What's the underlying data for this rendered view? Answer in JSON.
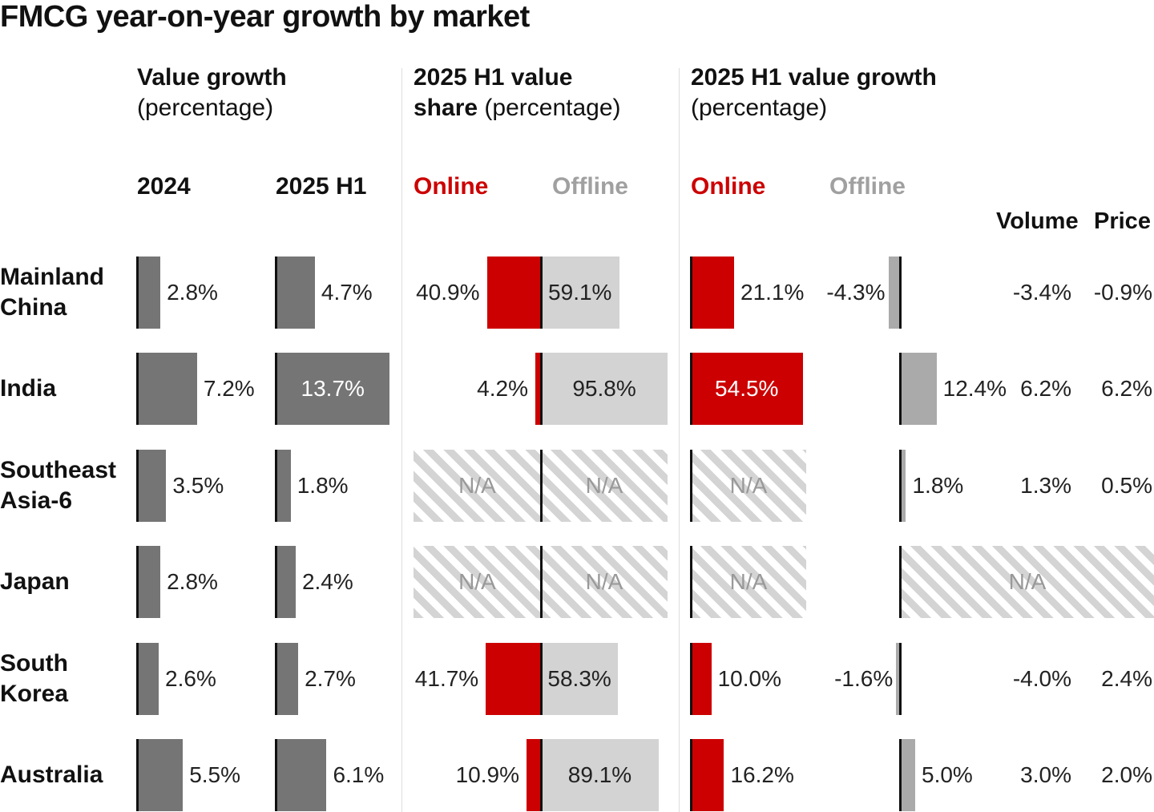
{
  "title": "FMCG year-on-year growth by market",
  "headers": {
    "value_growth_bold": "Value growth",
    "value_growth_rest": "(percentage)",
    "share_bold_1": "2025 H1 value",
    "share_bold_2": "share",
    "share_rest": "(percentage)",
    "h1growth_bold": "2025 H1 value growth",
    "h1growth_rest": "(percentage)",
    "col_2024": "2024",
    "col_2025h1": "2025 H1",
    "online": "Online",
    "offline": "Offline",
    "online2": "Online",
    "offline2": "Offline",
    "volume": "Volume",
    "price": "Price"
  },
  "na_label": "N/A",
  "colors": {
    "growth_bar": "#757575",
    "online": "#cc0000",
    "offline_share": "#d3d3d3",
    "offline_growth": "#aaaaaa",
    "hatch": "#d4d4d4"
  },
  "chart_data": {
    "type": "bar",
    "unit": "%",
    "categories": [
      "Mainland China",
      "India",
      "Southeast Asia-6",
      "Japan",
      "South Korea",
      "Australia"
    ],
    "series": [
      {
        "name": "2024",
        "values": [
          2.8,
          7.2,
          3.5,
          2.8,
          2.6,
          5.5
        ]
      },
      {
        "name": "2025 H1",
        "values": [
          4.7,
          13.7,
          1.8,
          2.4,
          2.7,
          6.1
        ]
      },
      {
        "name": "Online",
        "values": [
          40.9,
          4.2,
          null,
          null,
          41.7,
          10.9
        ]
      },
      {
        "name": "Offline",
        "values": [
          59.1,
          95.8,
          null,
          null,
          58.3,
          89.1
        ]
      },
      {
        "name": "Online",
        "values": [
          21.1,
          54.5,
          null,
          null,
          10.0,
          16.2
        ]
      },
      {
        "name": "Offline",
        "values": [
          -4.3,
          12.4,
          1.8,
          null,
          -1.6,
          5.0
        ]
      },
      {
        "name": "Volume",
        "values": [
          -3.4,
          6.2,
          1.3,
          null,
          -4.0,
          3.0
        ]
      },
      {
        "name": "Price",
        "values": [
          -0.9,
          6.2,
          0.5,
          null,
          2.4,
          2.0
        ]
      }
    ]
  }
}
